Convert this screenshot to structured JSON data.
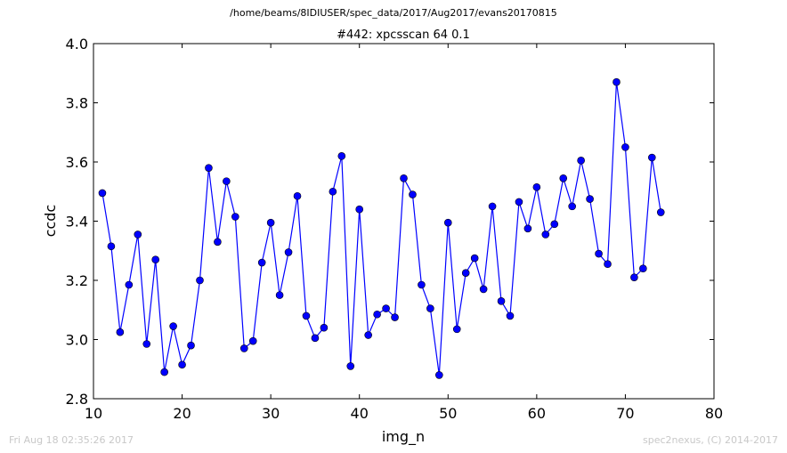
{
  "figure": {
    "suptitle": "/home/beams/8IDIUSER/spec_data/2017/Aug2017/evans20170815",
    "footer_left": "Fri Aug 18 02:35:26 2017",
    "footer_right": "spec2nexus, (C) 2014-2017"
  },
  "chart_data": {
    "type": "line",
    "title": "#442: xpcsscan 64 0.1",
    "xlabel": "img_n",
    "ylabel": "ccdc",
    "xlim": [
      10,
      80
    ],
    "ylim": [
      2.8,
      4.0
    ],
    "xticks": [
      10,
      20,
      30,
      40,
      50,
      60,
      70,
      80
    ],
    "yticks": [
      2.8,
      3.0,
      3.2,
      3.4,
      3.6,
      3.8,
      4.0
    ],
    "xtick_labels": [
      "10",
      "20",
      "30",
      "40",
      "50",
      "60",
      "70",
      "80"
    ],
    "ytick_labels": [
      "2.8",
      "3.0",
      "3.2",
      "3.4",
      "3.6",
      "3.8",
      "4.0"
    ],
    "grid": false,
    "line_color": "#0000ff",
    "marker": "circle",
    "x": [
      11,
      12,
      13,
      14,
      15,
      16,
      17,
      18,
      19,
      20,
      21,
      22,
      23,
      24,
      25,
      26,
      27,
      28,
      29,
      30,
      31,
      32,
      33,
      34,
      35,
      36,
      37,
      38,
      39,
      40,
      41,
      42,
      43,
      44,
      45,
      46,
      47,
      48,
      49,
      50,
      51,
      52,
      53,
      54,
      55,
      56,
      57,
      58,
      59,
      60,
      61,
      62,
      63,
      64,
      65,
      66,
      67,
      68,
      69,
      70,
      71,
      72,
      73,
      74
    ],
    "y": [
      3.495,
      3.315,
      3.025,
      3.185,
      3.355,
      2.985,
      3.27,
      2.89,
      3.045,
      2.915,
      2.98,
      3.2,
      3.58,
      3.33,
      3.535,
      3.415,
      2.97,
      2.995,
      3.26,
      3.395,
      3.15,
      3.295,
      3.485,
      3.08,
      3.005,
      3.04,
      3.5,
      3.62,
      2.91,
      3.44,
      3.015,
      3.085,
      3.105,
      3.075,
      3.545,
      3.49,
      3.185,
      3.105,
      2.88,
      3.395,
      3.035,
      3.225,
      3.275,
      3.17,
      3.45,
      3.13,
      3.08,
      3.465,
      3.375,
      3.515,
      3.355,
      3.39,
      3.545,
      3.45,
      3.605,
      3.475,
      3.29,
      3.255,
      3.87,
      3.65,
      3.21,
      3.24,
      3.615,
      3.43
    ]
  }
}
